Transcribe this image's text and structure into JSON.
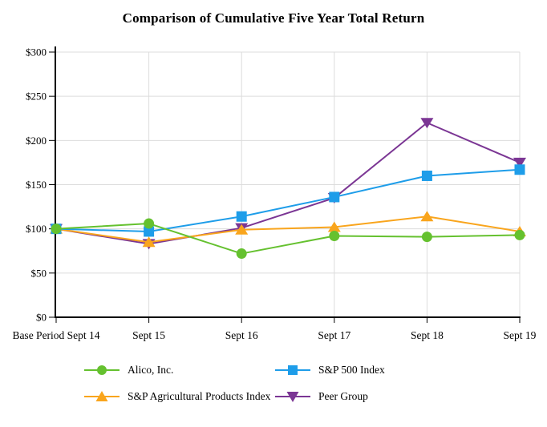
{
  "title": "Comparison of Cumulative Five Year Total Return",
  "chart_data": {
    "type": "line",
    "title": "Comparison of Cumulative Five Year Total Return",
    "categories": [
      "Base Period Sept 14",
      "Sept 15",
      "Sept 16",
      "Sept 17",
      "Sept 18",
      "Sept 19"
    ],
    "series": [
      {
        "name": "Alico, Inc.",
        "marker": "circle",
        "color": "#65C12F",
        "values": [
          100,
          106,
          72,
          92,
          91,
          93
        ]
      },
      {
        "name": "S&P 500 Index",
        "marker": "square",
        "color": "#1E9DE9",
        "values": [
          100,
          97,
          114,
          136,
          160,
          167
        ]
      },
      {
        "name": "S&P Agricultural Products Index",
        "marker": "triangle-up",
        "color": "#F9A51D",
        "values": [
          100,
          85,
          99,
          102,
          114,
          97
        ]
      },
      {
        "name": "Peer Group",
        "marker": "triangle-down",
        "color": "#7B3694",
        "values": [
          100,
          83,
          101,
          135,
          220,
          175
        ]
      }
    ],
    "xlabel": "",
    "ylabel": "",
    "ylim": [
      0,
      300
    ],
    "ytick_step": 50,
    "ytick_labels": [
      "$0",
      "$50",
      "$100",
      "$150",
      "$200",
      "$250",
      "$300"
    ],
    "grid": true,
    "legend_position": "bottom"
  },
  "colors": {
    "background": "#FFFFFF",
    "grid": "#DCDCDC",
    "axis": "#000000",
    "text": "#000000"
  }
}
